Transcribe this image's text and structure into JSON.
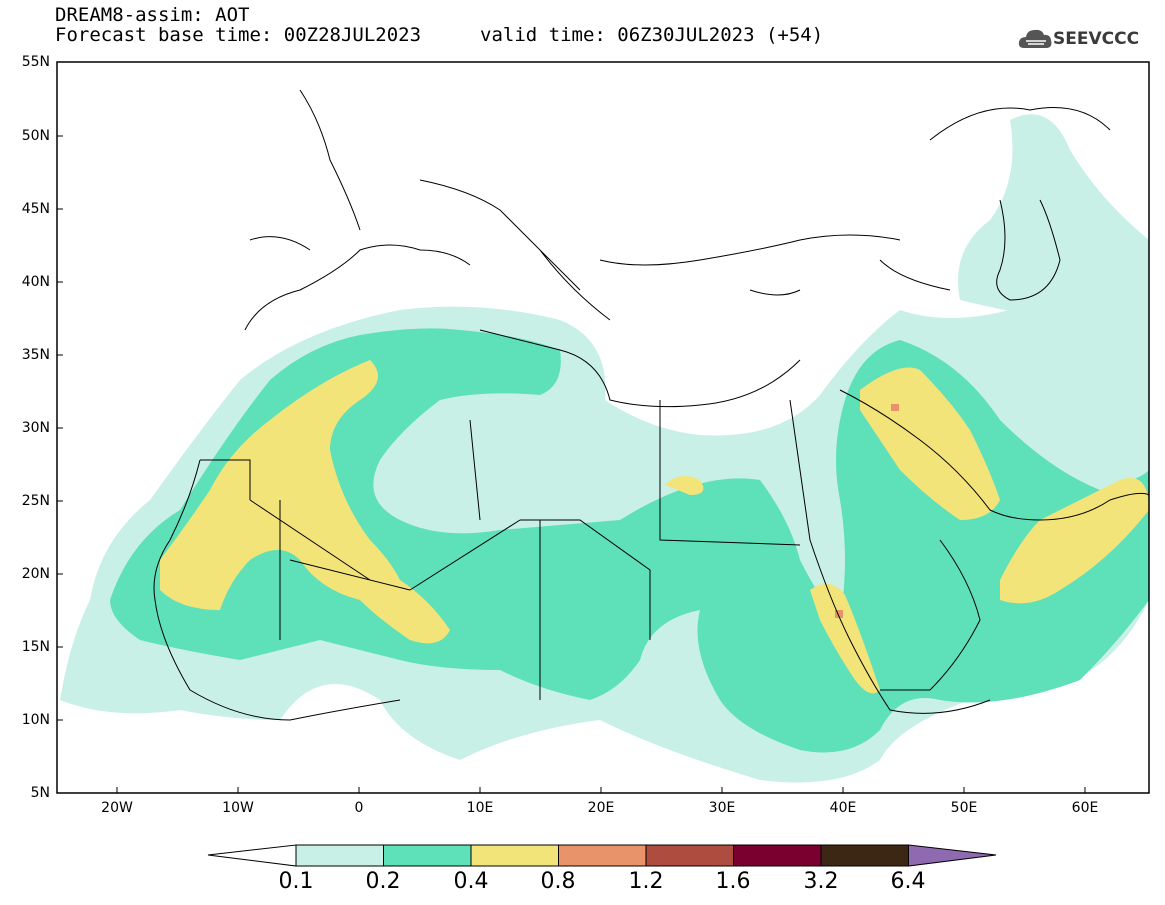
{
  "header": {
    "title": "DREAM8-assim: AOT",
    "base_time": "Forecast base time: 00Z28JUL2023",
    "valid_time": "valid time: 06Z30JUL2023 (+54)",
    "logo_text": "SEEVCCC"
  },
  "map": {
    "projection": "lat-lon",
    "lon_range": [
      -25,
      65
    ],
    "lat_range": [
      5,
      55
    ],
    "lat_labels": [
      "55N",
      "50N",
      "45N",
      "40N",
      "35N",
      "30N",
      "25N",
      "20N",
      "15N",
      "10N",
      "5N"
    ],
    "lon_labels": [
      "20W",
      "10W",
      "0",
      "10E",
      "20E",
      "30E",
      "40E",
      "50E",
      "60E"
    ],
    "field": "AOT"
  },
  "legend": {
    "levels": [
      "0.1",
      "0.2",
      "0.4",
      "0.8",
      "1.2",
      "1.6",
      "3.2",
      "6.4"
    ],
    "colors": [
      "#ffffff",
      "#c8f0e6",
      "#5ee0b9",
      "#f3e47a",
      "#e8936a",
      "#ae4c40",
      "#7a0030",
      "#3b2714",
      "#8f6ab0"
    ]
  }
}
